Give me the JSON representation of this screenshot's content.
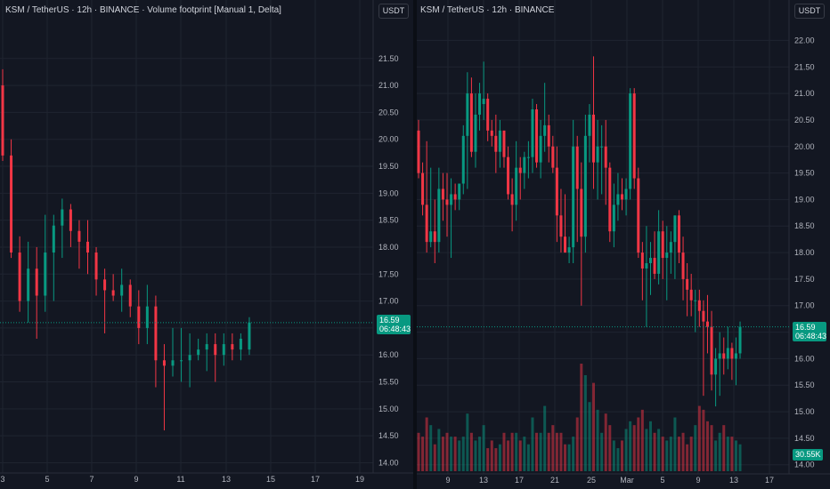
{
  "colors": {
    "up": "#089981",
    "down": "#f23645",
    "bg": "#131722",
    "grid": "#1f2430",
    "text": "#b2b5be"
  },
  "left": {
    "title": "KSM / TetherUS · 12h · BINANCE · Volume footprint [Manual 1, Delta]",
    "currency_button": "USDT",
    "price_tag": {
      "price": "16.59",
      "countdown": "06:48:43"
    },
    "y_labels": [
      "21.50",
      "21.00",
      "20.50",
      "20.00",
      "19.50",
      "19.00",
      "18.50",
      "18.00",
      "17.50",
      "17.00",
      "16.50",
      "16.00",
      "15.50",
      "15.00",
      "14.50",
      "14.00"
    ],
    "x_labels": [
      "3",
      "5",
      "7",
      "9",
      "11",
      "13",
      "15",
      "17",
      "19"
    ]
  },
  "right": {
    "title": "KSM / TetherUS · 12h · BINANCE",
    "currency_button": "USDT",
    "price_tag": {
      "price": "16.59",
      "countdown": "06:48:43"
    },
    "volume_tag": "30.55K",
    "y_labels": [
      "22.00",
      "21.50",
      "21.00",
      "20.50",
      "20.00",
      "19.50",
      "19.00",
      "18.50",
      "18.00",
      "17.50",
      "17.00",
      "16.50",
      "16.00",
      "15.50",
      "15.00",
      "14.50",
      "14.00"
    ],
    "x_labels": [
      "9",
      "13",
      "17",
      "21",
      "25",
      "Mar",
      "5",
      "9",
      "13",
      "17"
    ]
  },
  "chart_data": [
    {
      "type": "candlestick",
      "title": "KSM / TetherUS · 12h · BINANCE · Volume footprint [Manual 1, Delta]",
      "y_range": [
        13.9,
        21.95
      ],
      "candles": [
        {
          "o": 21.0,
          "h": 21.3,
          "l": 19.6,
          "c": 19.7
        },
        {
          "o": 19.7,
          "h": 20.0,
          "l": 17.8,
          "c": 17.9
        },
        {
          "o": 17.9,
          "h": 18.2,
          "l": 16.8,
          "c": 17.0
        },
        {
          "o": 17.0,
          "h": 18.1,
          "l": 16.6,
          "c": 17.6
        },
        {
          "o": 17.6,
          "h": 18.0,
          "l": 16.3,
          "c": 17.1
        },
        {
          "o": 17.1,
          "h": 18.6,
          "l": 16.8,
          "c": 17.9
        },
        {
          "o": 17.9,
          "h": 18.6,
          "l": 17.0,
          "c": 18.4
        },
        {
          "o": 18.4,
          "h": 18.9,
          "l": 17.8,
          "c": 18.7
        },
        {
          "o": 18.7,
          "h": 18.8,
          "l": 18.0,
          "c": 18.3
        },
        {
          "o": 18.3,
          "h": 18.5,
          "l": 17.6,
          "c": 18.1
        },
        {
          "o": 18.1,
          "h": 18.5,
          "l": 17.5,
          "c": 17.9
        },
        {
          "o": 17.9,
          "h": 18.0,
          "l": 17.1,
          "c": 17.4
        },
        {
          "o": 17.4,
          "h": 17.6,
          "l": 16.4,
          "c": 17.2
        },
        {
          "o": 17.2,
          "h": 17.5,
          "l": 17.0,
          "c": 17.1
        },
        {
          "o": 17.1,
          "h": 17.6,
          "l": 16.8,
          "c": 17.3
        },
        {
          "o": 17.3,
          "h": 17.4,
          "l": 16.7,
          "c": 16.9
        },
        {
          "o": 16.9,
          "h": 17.2,
          "l": 16.2,
          "c": 16.5
        },
        {
          "o": 16.5,
          "h": 17.3,
          "l": 16.2,
          "c": 16.9
        },
        {
          "o": 16.9,
          "h": 17.1,
          "l": 15.4,
          "c": 15.9
        },
        {
          "o": 15.9,
          "h": 16.2,
          "l": 14.6,
          "c": 15.8
        },
        {
          "o": 15.8,
          "h": 16.5,
          "l": 15.6,
          "c": 15.9
        },
        {
          "o": 15.9,
          "h": 16.5,
          "l": 15.5,
          "c": 15.9
        },
        {
          "o": 15.9,
          "h": 16.4,
          "l": 15.4,
          "c": 16.0
        },
        {
          "o": 16.0,
          "h": 16.3,
          "l": 15.9,
          "c": 16.1
        },
        {
          "o": 16.1,
          "h": 16.4,
          "l": 15.7,
          "c": 16.2
        },
        {
          "o": 16.2,
          "h": 16.4,
          "l": 15.5,
          "c": 16.0
        },
        {
          "o": 16.0,
          "h": 16.4,
          "l": 15.8,
          "c": 16.2
        },
        {
          "o": 16.2,
          "h": 16.4,
          "l": 15.9,
          "c": 16.1
        },
        {
          "o": 16.1,
          "h": 16.4,
          "l": 15.9,
          "c": 16.3
        },
        {
          "o": 16.1,
          "h": 16.7,
          "l": 16.0,
          "c": 16.6
        }
      ]
    },
    {
      "type": "candlestick",
      "title": "KSM / TetherUS · 12h · BINANCE",
      "y_range": [
        13.92,
        22.2
      ],
      "volume_max": 30.55,
      "candles": [
        {
          "o": 20.3,
          "h": 20.5,
          "l": 19.4,
          "c": 19.5,
          "v": 10
        },
        {
          "o": 19.5,
          "h": 19.7,
          "l": 18.7,
          "c": 18.9,
          "v": 9
        },
        {
          "o": 18.9,
          "h": 20.1,
          "l": 18.0,
          "c": 18.2,
          "v": 14
        },
        {
          "o": 18.2,
          "h": 19.6,
          "l": 18.1,
          "c": 18.4,
          "v": 12
        },
        {
          "o": 18.4,
          "h": 19.0,
          "l": 17.8,
          "c": 18.2,
          "v": 7
        },
        {
          "o": 18.2,
          "h": 19.6,
          "l": 18.0,
          "c": 19.2,
          "v": 11
        },
        {
          "o": 19.2,
          "h": 19.5,
          "l": 18.6,
          "c": 19.0,
          "v": 9
        },
        {
          "o": 19.0,
          "h": 19.5,
          "l": 18.3,
          "c": 18.9,
          "v": 10
        },
        {
          "o": 18.9,
          "h": 19.4,
          "l": 17.9,
          "c": 19.1,
          "v": 9
        },
        {
          "o": 19.1,
          "h": 19.3,
          "l": 18.8,
          "c": 19.0,
          "v": 9
        },
        {
          "o": 19.0,
          "h": 19.3,
          "l": 18.8,
          "c": 19.3,
          "v": 8
        },
        {
          "o": 19.3,
          "h": 20.4,
          "l": 19.1,
          "c": 20.2,
          "v": 9
        },
        {
          "o": 20.2,
          "h": 21.4,
          "l": 19.2,
          "c": 21.0,
          "v": 15
        },
        {
          "o": 21.0,
          "h": 21.3,
          "l": 19.8,
          "c": 19.9,
          "v": 10
        },
        {
          "o": 19.9,
          "h": 21.0,
          "l": 19.6,
          "c": 20.6,
          "v": 8
        },
        {
          "o": 20.6,
          "h": 21.2,
          "l": 20.3,
          "c": 21.0,
          "v": 9
        },
        {
          "o": 20.8,
          "h": 21.6,
          "l": 20.5,
          "c": 20.9,
          "v": 12
        },
        {
          "o": 20.9,
          "h": 21.0,
          "l": 20.1,
          "c": 20.3,
          "v": 6
        },
        {
          "o": 20.3,
          "h": 20.5,
          "l": 20.0,
          "c": 20.2,
          "v": 8
        },
        {
          "o": 20.2,
          "h": 20.6,
          "l": 19.5,
          "c": 19.9,
          "v": 6
        },
        {
          "o": 19.9,
          "h": 20.5,
          "l": 19.6,
          "c": 20.3,
          "v": 7
        },
        {
          "o": 20.3,
          "h": 20.3,
          "l": 19.6,
          "c": 19.8,
          "v": 10
        },
        {
          "o": 19.8,
          "h": 20.0,
          "l": 19.0,
          "c": 19.1,
          "v": 8
        },
        {
          "o": 19.1,
          "h": 19.4,
          "l": 18.4,
          "c": 18.9,
          "v": 10
        },
        {
          "o": 18.9,
          "h": 20.1,
          "l": 18.6,
          "c": 19.6,
          "v": 10
        },
        {
          "o": 19.6,
          "h": 19.8,
          "l": 19.0,
          "c": 19.5,
          "v": 8
        },
        {
          "o": 19.5,
          "h": 19.9,
          "l": 19.2,
          "c": 19.8,
          "v": 9
        },
        {
          "o": 19.8,
          "h": 20.1,
          "l": 19.4,
          "c": 19.8,
          "v": 7
        },
        {
          "o": 19.8,
          "h": 20.9,
          "l": 19.5,
          "c": 20.7,
          "v": 14
        },
        {
          "o": 20.7,
          "h": 20.8,
          "l": 19.6,
          "c": 19.7,
          "v": 10
        },
        {
          "o": 19.7,
          "h": 20.5,
          "l": 19.4,
          "c": 20.2,
          "v": 10
        },
        {
          "o": 20.2,
          "h": 21.2,
          "l": 19.9,
          "c": 20.4,
          "v": 17
        },
        {
          "o": 20.4,
          "h": 20.6,
          "l": 19.7,
          "c": 20.0,
          "v": 10
        },
        {
          "o": 20.0,
          "h": 20.2,
          "l": 19.5,
          "c": 19.6,
          "v": 12
        },
        {
          "o": 19.6,
          "h": 20.0,
          "l": 18.2,
          "c": 18.7,
          "v": 10
        },
        {
          "o": 18.7,
          "h": 19.2,
          "l": 18.0,
          "c": 18.3,
          "v": 10
        },
        {
          "o": 18.3,
          "h": 19.1,
          "l": 18.0,
          "c": 18.0,
          "v": 7
        },
        {
          "o": 18.0,
          "h": 18.3,
          "l": 17.8,
          "c": 18.1,
          "v": 7
        },
        {
          "o": 18.1,
          "h": 20.5,
          "l": 17.8,
          "c": 20.0,
          "v": 9
        },
        {
          "o": 20.0,
          "h": 20.2,
          "l": 18.2,
          "c": 19.2,
          "v": 14
        },
        {
          "o": 19.2,
          "h": 19.7,
          "l": 17.0,
          "c": 18.3,
          "v": 28
        },
        {
          "o": 18.3,
          "h": 20.6,
          "l": 18.0,
          "c": 20.2,
          "v": 25
        },
        {
          "o": 20.2,
          "h": 20.8,
          "l": 19.7,
          "c": 20.6,
          "v": 18
        },
        {
          "o": 20.6,
          "h": 21.7,
          "l": 19.2,
          "c": 19.7,
          "v": 23
        },
        {
          "o": 19.7,
          "h": 20.5,
          "l": 19.0,
          "c": 20.0,
          "v": 16
        },
        {
          "o": 20.0,
          "h": 20.4,
          "l": 19.1,
          "c": 20.0,
          "v": 10
        },
        {
          "o": 20.0,
          "h": 20.5,
          "l": 18.9,
          "c": 19.6,
          "v": 15
        },
        {
          "o": 19.6,
          "h": 19.7,
          "l": 18.2,
          "c": 18.4,
          "v": 12
        },
        {
          "o": 18.4,
          "h": 19.3,
          "l": 18.1,
          "c": 18.9,
          "v": 8
        },
        {
          "o": 18.9,
          "h": 19.5,
          "l": 18.6,
          "c": 19.1,
          "v": 6
        },
        {
          "o": 19.1,
          "h": 19.4,
          "l": 18.8,
          "c": 19.0,
          "v": 8
        },
        {
          "o": 19.0,
          "h": 19.4,
          "l": 18.7,
          "c": 19.2,
          "v": 11
        },
        {
          "o": 19.2,
          "h": 21.1,
          "l": 19.0,
          "c": 21.0,
          "v": 13
        },
        {
          "o": 21.0,
          "h": 21.1,
          "l": 19.2,
          "c": 19.4,
          "v": 12
        },
        {
          "o": 19.4,
          "h": 19.6,
          "l": 17.9,
          "c": 18.0,
          "v": 14
        },
        {
          "o": 18.0,
          "h": 18.2,
          "l": 17.1,
          "c": 17.7,
          "v": 16
        },
        {
          "o": 17.7,
          "h": 18.5,
          "l": 16.6,
          "c": 17.8,
          "v": 11
        },
        {
          "o": 17.8,
          "h": 18.2,
          "l": 17.2,
          "c": 17.9,
          "v": 13
        },
        {
          "o": 17.9,
          "h": 18.4,
          "l": 17.5,
          "c": 17.6,
          "v": 10
        },
        {
          "o": 17.6,
          "h": 18.8,
          "l": 17.4,
          "c": 18.4,
          "v": 11
        },
        {
          "o": 18.4,
          "h": 18.6,
          "l": 17.5,
          "c": 17.9,
          "v": 9
        },
        {
          "o": 17.9,
          "h": 18.5,
          "l": 17.1,
          "c": 18.0,
          "v": 8
        },
        {
          "o": 18.0,
          "h": 18.4,
          "l": 17.6,
          "c": 18.2,
          "v": 9
        },
        {
          "o": 18.2,
          "h": 18.7,
          "l": 17.5,
          "c": 18.7,
          "v": 14
        },
        {
          "o": 18.7,
          "h": 18.8,
          "l": 17.8,
          "c": 18.0,
          "v": 9
        },
        {
          "o": 18.0,
          "h": 18.3,
          "l": 17.1,
          "c": 17.5,
          "v": 10
        },
        {
          "o": 17.5,
          "h": 17.8,
          "l": 16.8,
          "c": 17.3,
          "v": 7
        },
        {
          "o": 17.3,
          "h": 17.6,
          "l": 16.8,
          "c": 17.1,
          "v": 9
        },
        {
          "o": 17.1,
          "h": 17.3,
          "l": 16.5,
          "c": 17.1,
          "v": 12
        },
        {
          "o": 17.1,
          "h": 17.3,
          "l": 16.6,
          "c": 16.9,
          "v": 17
        },
        {
          "o": 16.9,
          "h": 17.1,
          "l": 15.3,
          "c": 16.7,
          "v": 16
        },
        {
          "o": 16.7,
          "h": 17.2,
          "l": 16.1,
          "c": 16.6,
          "v": 13
        },
        {
          "o": 16.6,
          "h": 16.9,
          "l": 15.4,
          "c": 15.7,
          "v": 12
        },
        {
          "o": 15.7,
          "h": 16.2,
          "l": 15.1,
          "c": 16.0,
          "v": 8
        },
        {
          "o": 16.0,
          "h": 16.5,
          "l": 15.3,
          "c": 16.1,
          "v": 10
        },
        {
          "o": 16.1,
          "h": 16.4,
          "l": 15.7,
          "c": 16.0,
          "v": 12
        },
        {
          "o": 16.0,
          "h": 16.6,
          "l": 15.8,
          "c": 16.2,
          "v": 9
        },
        {
          "o": 16.2,
          "h": 16.3,
          "l": 15.6,
          "c": 16.0,
          "v": 9
        },
        {
          "o": 16.0,
          "h": 16.4,
          "l": 15.5,
          "c": 16.1,
          "v": 8
        },
        {
          "o": 16.1,
          "h": 16.7,
          "l": 16.0,
          "c": 16.6,
          "v": 7
        }
      ]
    }
  ]
}
